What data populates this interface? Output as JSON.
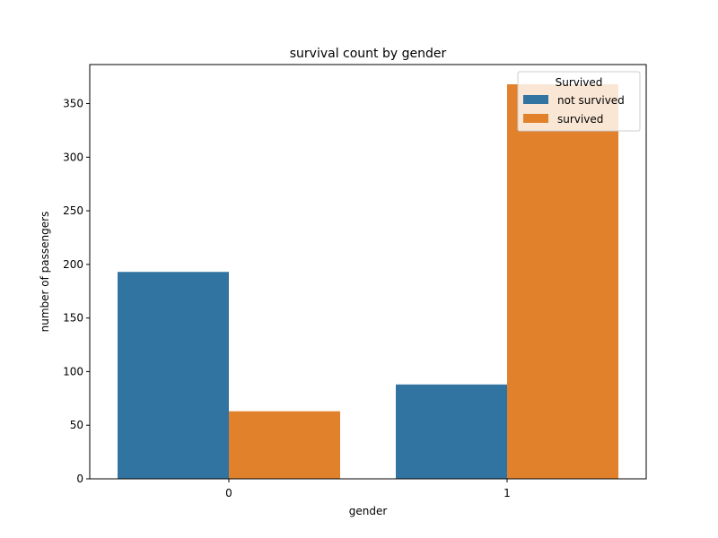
{
  "chart_data": {
    "type": "bar",
    "title": "survival count by gender",
    "xlabel": "gender",
    "ylabel": "number of passengers",
    "categories": [
      "0",
      "1"
    ],
    "series": [
      {
        "name": "not survived",
        "values": [
          193,
          88
        ],
        "color": "#3274a1"
      },
      {
        "name": "survived",
        "values": [
          63,
          368
        ],
        "color": "#e1812c"
      }
    ],
    "ylim": [
      0,
      386.4
    ],
    "yticks": [
      0,
      50,
      100,
      150,
      200,
      250,
      300,
      350
    ],
    "grid": false,
    "legend": {
      "title": "Survived",
      "position": "top-right"
    }
  }
}
